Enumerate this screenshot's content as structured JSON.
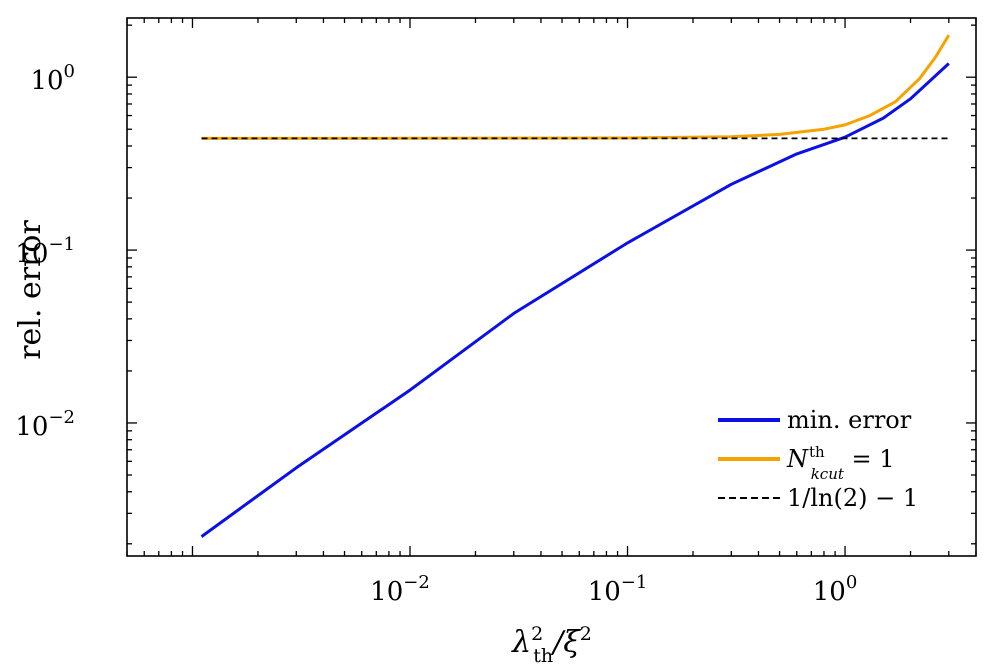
{
  "chart_data": {
    "type": "line",
    "xscale": "log",
    "yscale": "log",
    "xlabel": {
      "base": "λ",
      "sup": "2",
      "sub": "th",
      "rest": "/ξ",
      "rest_sup": "2"
    },
    "ylabel": "rel. error",
    "xlim": [
      0.0005,
      4.0
    ],
    "ylim": [
      0.0017,
      2.2
    ],
    "x_ticks": [
      {
        "base": "10",
        "exp": "−2",
        "value": 0.01
      },
      {
        "base": "10",
        "exp": "−1",
        "value": 0.1
      },
      {
        "base": "10",
        "exp": "0",
        "value": 1
      }
    ],
    "y_ticks": [
      {
        "base": "10",
        "exp": "−2",
        "value": 0.01
      },
      {
        "base": "10",
        "exp": "−1",
        "value": 0.1
      },
      {
        "base": "10",
        "exp": "0",
        "value": 1
      }
    ],
    "series": [
      {
        "name": "min. error",
        "color": "#0a10e6",
        "x": [
          0.0011,
          0.003,
          0.01,
          0.03,
          0.1,
          0.3,
          0.6,
          1.0,
          1.5,
          2.0,
          3.0
        ],
        "y": [
          0.0022,
          0.0055,
          0.0155,
          0.043,
          0.11,
          0.24,
          0.36,
          0.45,
          0.58,
          0.75,
          1.2
        ]
      },
      {
        "name": "N_kcut^th = 1",
        "color": "#f5a300",
        "x": [
          0.0011,
          0.01,
          0.1,
          0.3,
          0.5,
          0.8,
          1.0,
          1.3,
          1.7,
          2.2,
          2.6,
          3.0
        ],
        "y": [
          0.4427,
          0.443,
          0.445,
          0.452,
          0.467,
          0.5,
          0.53,
          0.6,
          0.72,
          0.98,
          1.3,
          1.75
        ]
      },
      {
        "name": "1/ln(2) − 1",
        "color": "#000000",
        "dashed": true,
        "x": [
          0.0011,
          3.0
        ],
        "y": [
          0.4427,
          0.4427
        ]
      }
    ],
    "legend": {
      "placement": "lower-right",
      "entries": [
        {
          "label": "min. error"
        },
        {
          "label_parts": {
            "N": "N",
            "sup": "th",
            "sub": "kcut",
            "rest": " = 1"
          }
        },
        {
          "label": "1/ln(2) − 1"
        }
      ]
    }
  }
}
